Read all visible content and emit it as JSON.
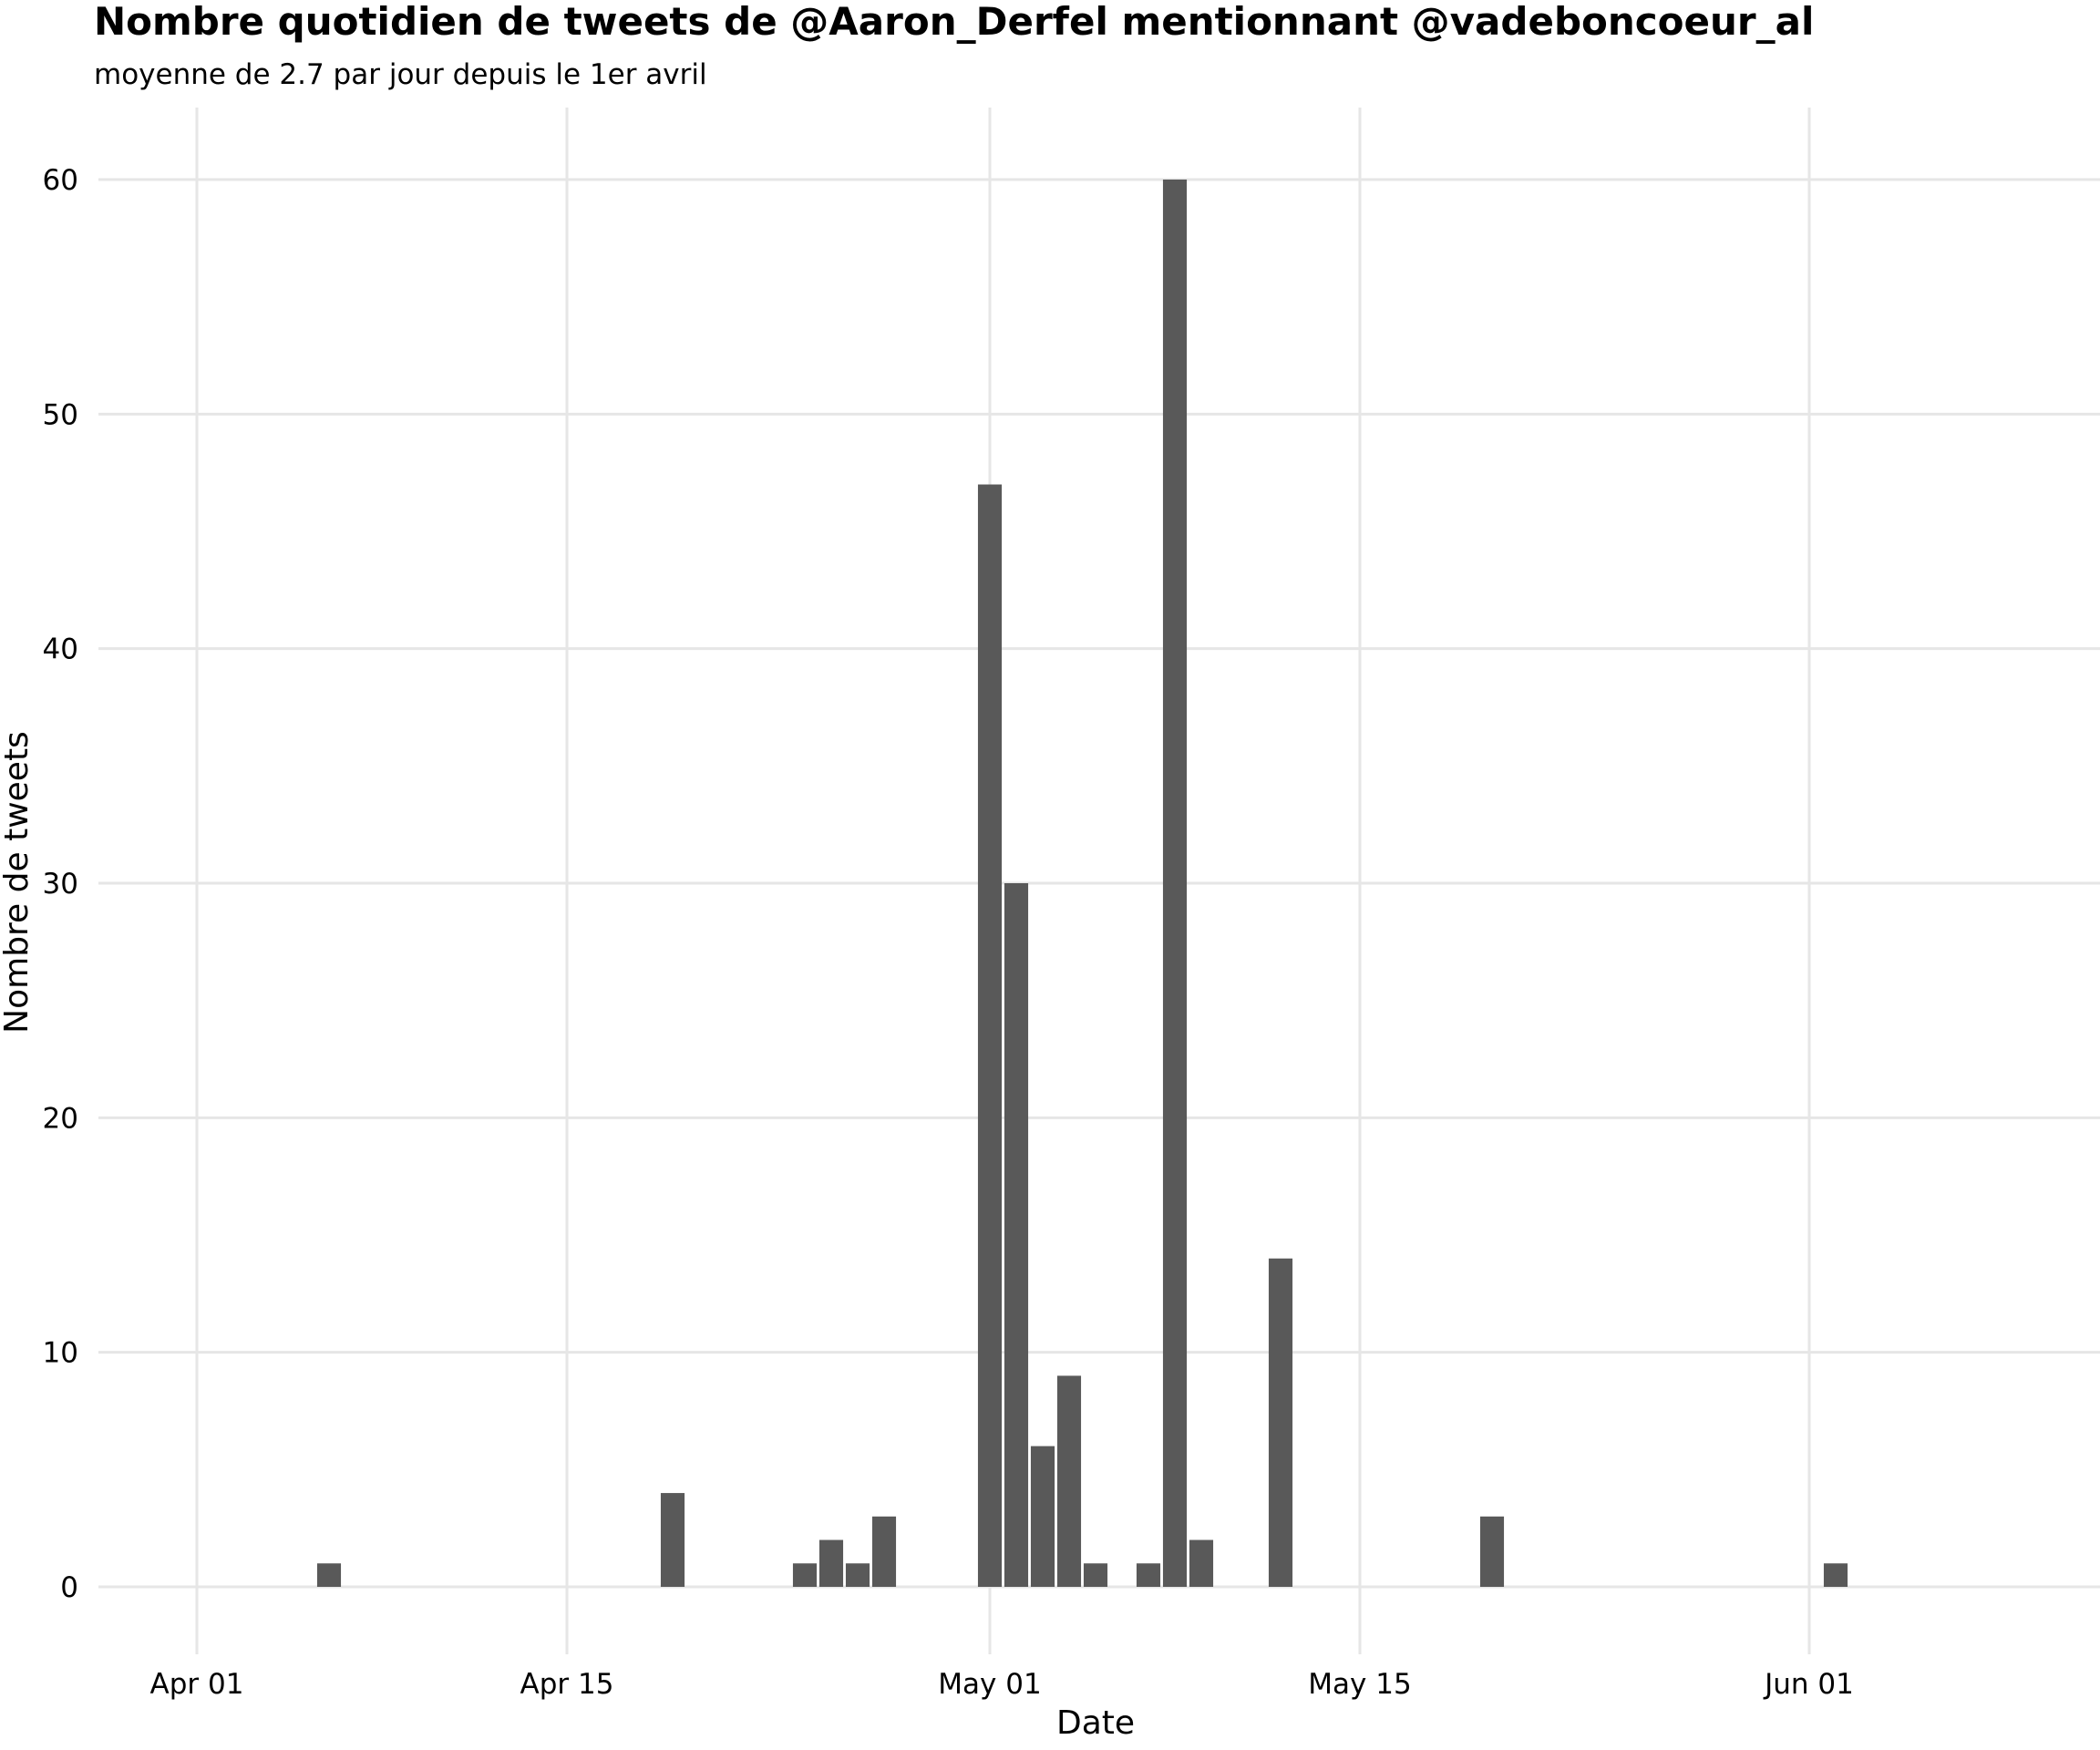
{
  "chart_data": {
    "type": "bar",
    "title": "Nombre quotidien de tweets de @Aaron_Derfel mentionnant @vadeboncoeur_al",
    "subtitle": "moyenne de 2.7 par jour depuis le 1er avril",
    "xlabel": "Date",
    "ylabel": "Nombre de tweets",
    "xlim": [
      "2020-03-28",
      "2020-06-11"
    ],
    "ylim": [
      0,
      63
    ],
    "x_ticks": [
      {
        "date": "2020-04-01",
        "label": "Apr 01"
      },
      {
        "date": "2020-04-15",
        "label": "Apr 15"
      },
      {
        "date": "2020-05-01",
        "label": "May 01"
      },
      {
        "date": "2020-05-15",
        "label": "May 15"
      },
      {
        "date": "2020-06-01",
        "label": "Jun 01"
      }
    ],
    "y_ticks": [
      0,
      10,
      20,
      30,
      40,
      50,
      60
    ],
    "grid": true,
    "legend": "none",
    "bar_color": "#595959",
    "grid_color": "#e6e6e6",
    "points": [
      {
        "date": "2020-04-06",
        "value": 1
      },
      {
        "date": "2020-04-19",
        "value": 4
      },
      {
        "date": "2020-04-24",
        "value": 1
      },
      {
        "date": "2020-04-25",
        "value": 2
      },
      {
        "date": "2020-04-26",
        "value": 1
      },
      {
        "date": "2020-04-27",
        "value": 3
      },
      {
        "date": "2020-05-01",
        "value": 47
      },
      {
        "date": "2020-05-02",
        "value": 30
      },
      {
        "date": "2020-05-03",
        "value": 6
      },
      {
        "date": "2020-05-04",
        "value": 9
      },
      {
        "date": "2020-05-05",
        "value": 1
      },
      {
        "date": "2020-05-07",
        "value": 1
      },
      {
        "date": "2020-05-08",
        "value": 60
      },
      {
        "date": "2020-05-09",
        "value": 2
      },
      {
        "date": "2020-05-12",
        "value": 14
      },
      {
        "date": "2020-05-20",
        "value": 3
      },
      {
        "date": "2020-06-02",
        "value": 1
      }
    ]
  }
}
